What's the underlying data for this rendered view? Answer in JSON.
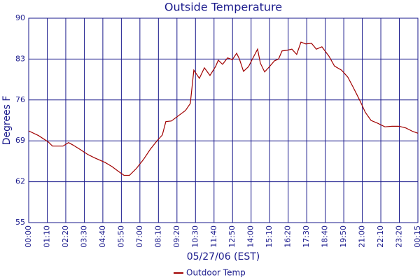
{
  "chart_data": {
    "type": "line",
    "title": "Outside Temperature",
    "x_label": "05/27/06 (EST)",
    "y_label": "Degrees F",
    "xlim": [
      0,
      21
    ],
    "ylim": [
      55,
      90
    ],
    "xticks": [
      {
        "value": 0,
        "label": "00:00"
      },
      {
        "value": 1,
        "label": "01:10"
      },
      {
        "value": 2,
        "label": "02:20"
      },
      {
        "value": 3,
        "label": "03:30"
      },
      {
        "value": 4,
        "label": "04:40"
      },
      {
        "value": 5,
        "label": "05:50"
      },
      {
        "value": 6,
        "label": "07:00"
      },
      {
        "value": 7,
        "label": "08:10"
      },
      {
        "value": 8,
        "label": "09:20"
      },
      {
        "value": 9,
        "label": "10:30"
      },
      {
        "value": 10,
        "label": "11:40"
      },
      {
        "value": 11,
        "label": "12:50"
      },
      {
        "value": 12,
        "label": "14:00"
      },
      {
        "value": 13,
        "label": "15:10"
      },
      {
        "value": 14,
        "label": "16:20"
      },
      {
        "value": 15,
        "label": "17:30"
      },
      {
        "value": 16,
        "label": "18:40"
      },
      {
        "value": 17,
        "label": "19:50"
      },
      {
        "value": 18,
        "label": "21:00"
      },
      {
        "value": 19,
        "label": "22:10"
      },
      {
        "value": 20,
        "label": "23:20"
      },
      {
        "value": 21,
        "label": "00:15"
      }
    ],
    "yticks": [
      55,
      62,
      69,
      76,
      83,
      90
    ],
    "grid": true,
    "legend": "bottom",
    "x": [
      0,
      0.53,
      1.06,
      1.28,
      1.85,
      2.15,
      2.38,
      2.79,
      3.17,
      3.55,
      4.12,
      4.49,
      4.87,
      5.14,
      5.44,
      5.82,
      6.19,
      6.57,
      6.95,
      7.21,
      7.4,
      7.7,
      8.08,
      8.46,
      8.72,
      8.91,
      9.21,
      9.48,
      9.78,
      10.08,
      10.23,
      10.46,
      10.73,
      10.99,
      11.22,
      11.37,
      11.59,
      11.86,
      12.12,
      12.35,
      12.5,
      12.73,
      12.99,
      13.26,
      13.48,
      13.67,
      13.93,
      14.2,
      14.46,
      14.69,
      14.95,
      15.26,
      15.52,
      15.82,
      16.2,
      16.5,
      16.88,
      17.22,
      17.52,
      17.9,
      18.16,
      18.47,
      18.84,
      19.22,
      19.6,
      19.98,
      20.35,
      20.73,
      21
    ],
    "series": [
      {
        "name": "Outdoor Temp",
        "color": "#a00000",
        "values": [
          70.7,
          69.9,
          68.8,
          68.1,
          68.1,
          68.7,
          68.3,
          67.5,
          66.7,
          66.1,
          65.3,
          64.6,
          63.7,
          63.1,
          63.1,
          64.3,
          65.8,
          67.6,
          69.1,
          70.0,
          72.3,
          72.4,
          73.3,
          74.2,
          75.4,
          81.1,
          79.7,
          81.5,
          80.2,
          81.7,
          82.8,
          82.1,
          83.2,
          82.9,
          84.0,
          83.0,
          80.9,
          81.7,
          83.3,
          84.7,
          82.3,
          80.8,
          81.7,
          82.7,
          83.0,
          84.4,
          84.5,
          84.7,
          83.8,
          85.9,
          85.6,
          85.7,
          84.7,
          85.1,
          83.5,
          81.8,
          81.1,
          79.9,
          78.1,
          75.7,
          73.9,
          72.5,
          72.0,
          71.4,
          71.5,
          71.5,
          71.2,
          70.6,
          70.3
        ]
      }
    ]
  }
}
